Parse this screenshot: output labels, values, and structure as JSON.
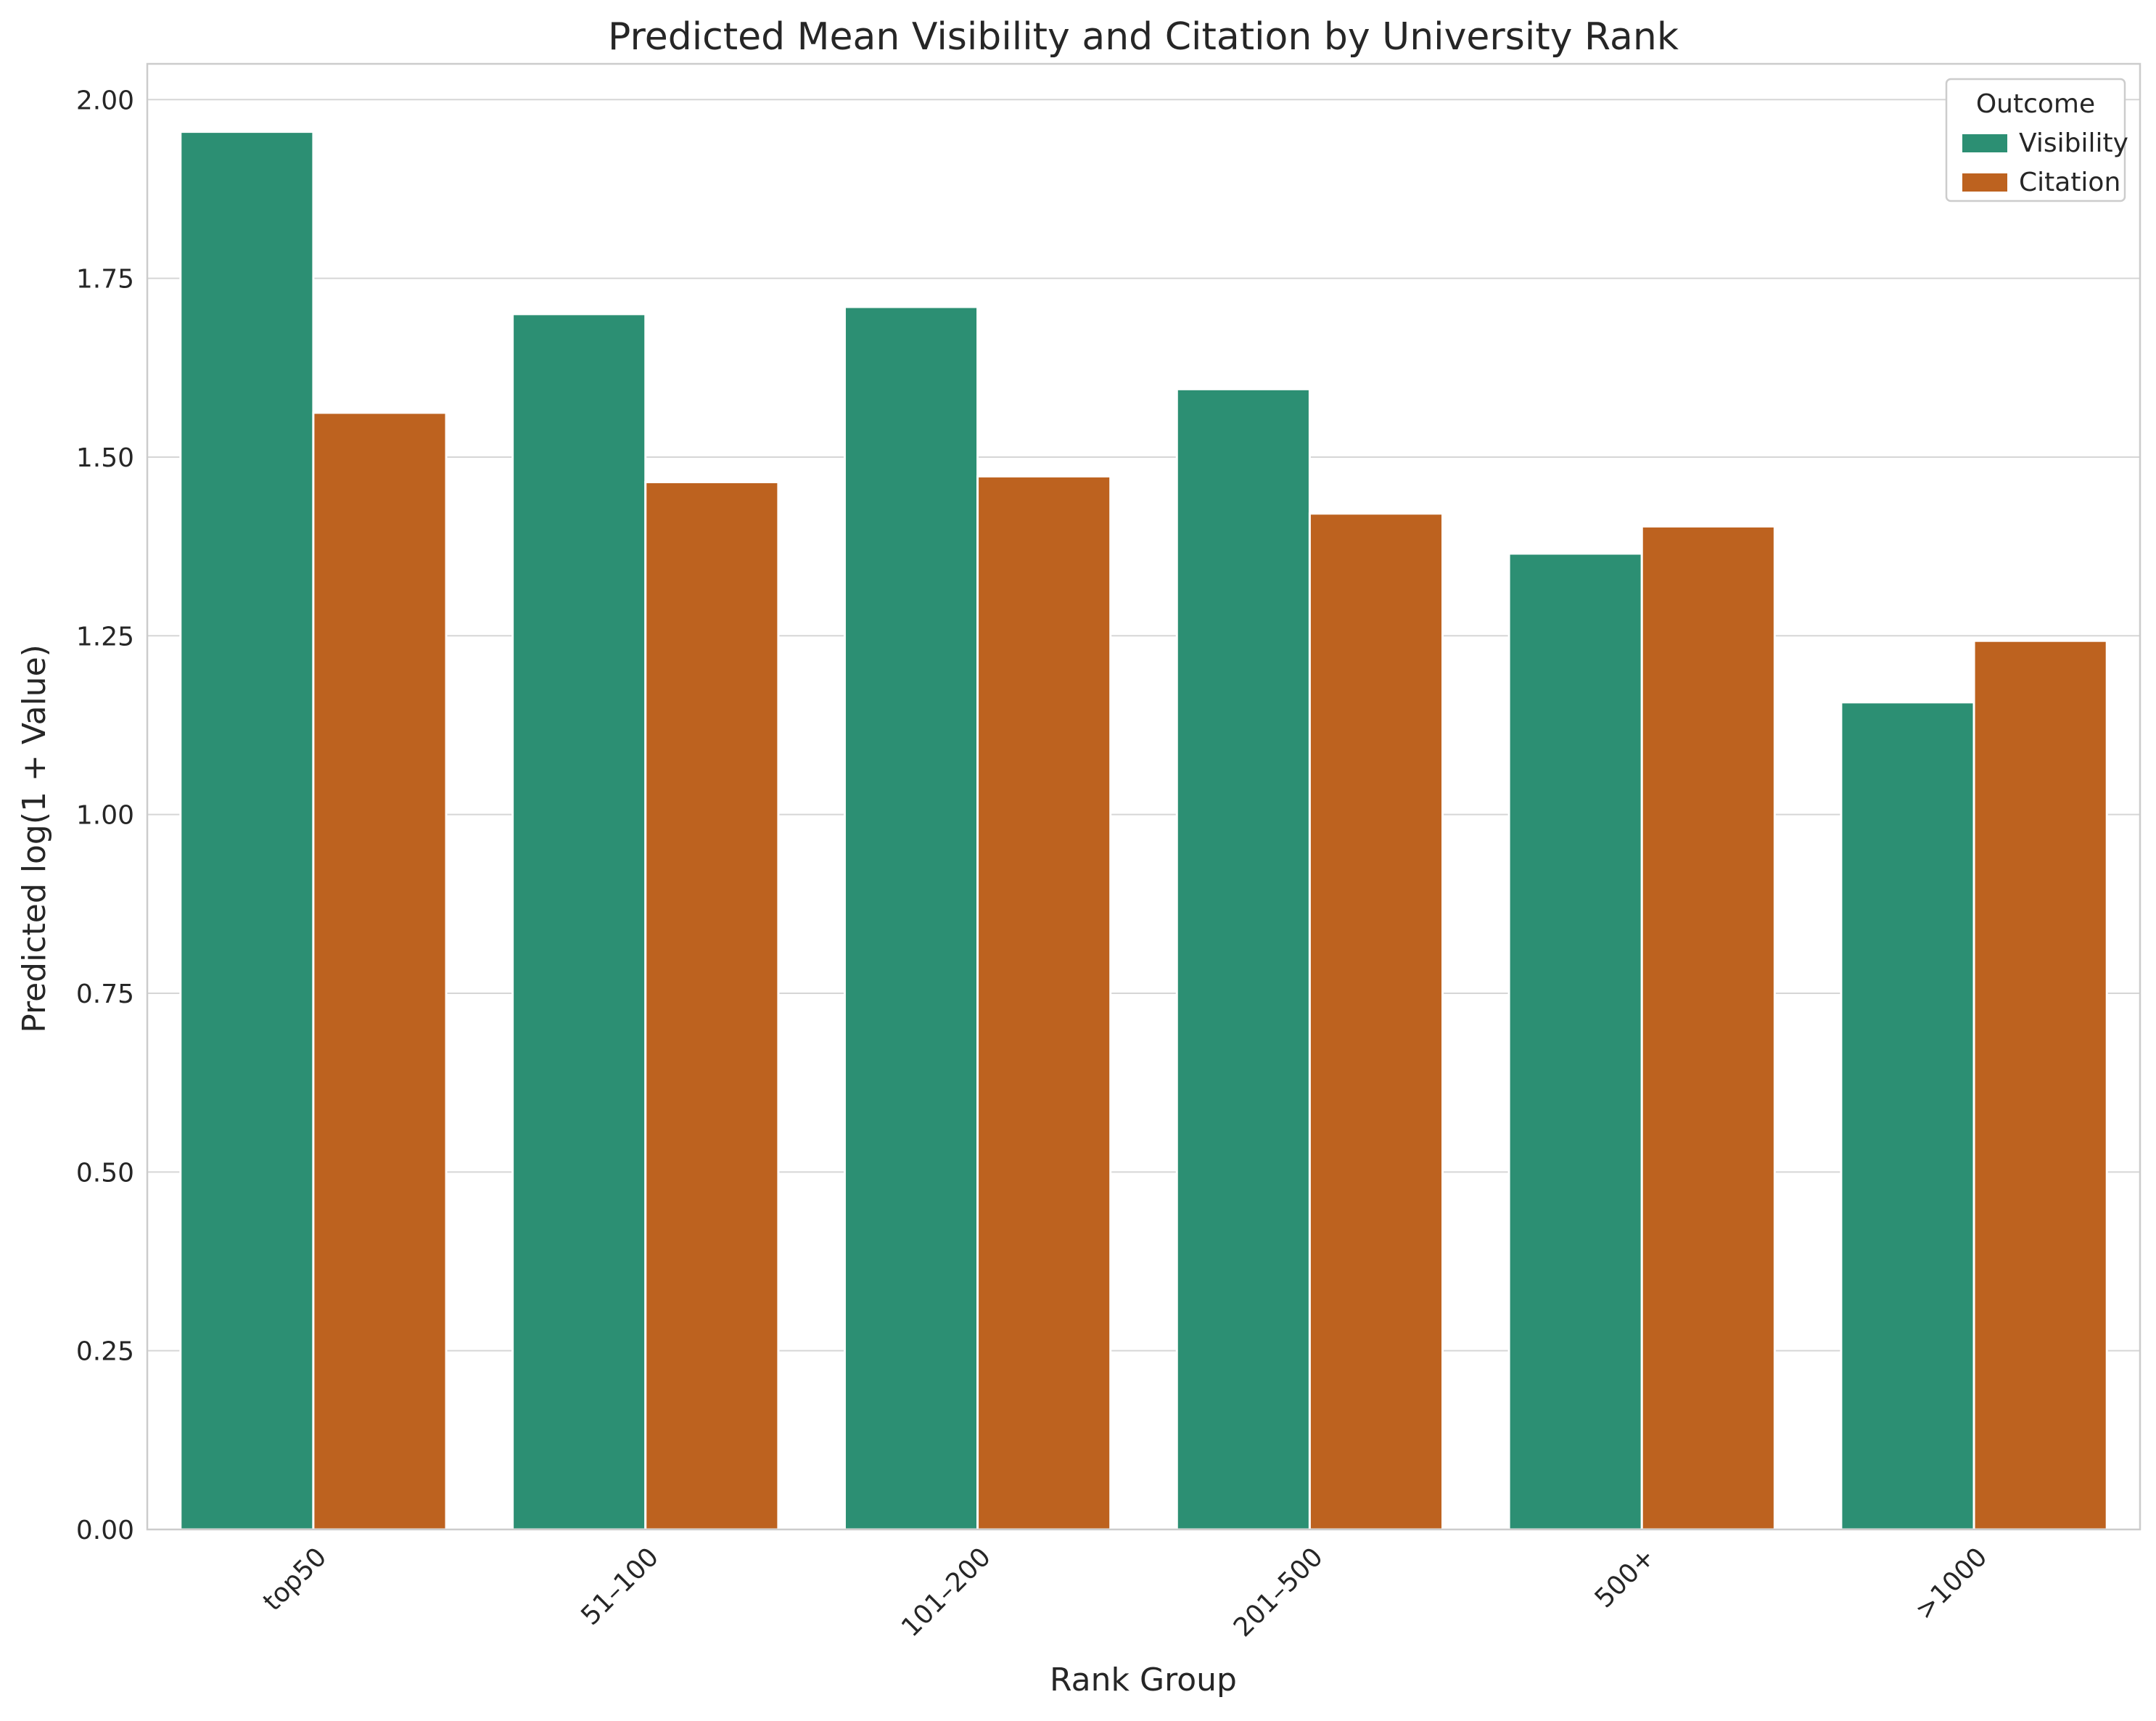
{
  "chart_data": {
    "type": "bar",
    "title": "Predicted Mean Visibility and Citation by University Rank",
    "xlabel": "Rank Group",
    "ylabel": "Predicted log(1 + Value)",
    "categories": [
      "top50",
      "51–100",
      "101–200",
      "201–500",
      "500+",
      ">1000"
    ],
    "series": [
      {
        "name": "Visibility",
        "color": "#2c8f73",
        "values": [
          1.955,
          1.7,
          1.71,
          1.595,
          1.365,
          1.157
        ]
      },
      {
        "name": "Citation",
        "color": "#bd621f",
        "values": [
          1.562,
          1.465,
          1.473,
          1.421,
          1.403,
          1.243
        ]
      }
    ],
    "ylim": [
      0,
      2.05
    ],
    "yticks": [
      "0.00",
      "0.25",
      "0.50",
      "0.75",
      "1.00",
      "1.25",
      "1.50",
      "1.75",
      "2.00"
    ],
    "grid": "horizontal",
    "legend": {
      "title": "Outcome",
      "placement": "top-right"
    }
  }
}
